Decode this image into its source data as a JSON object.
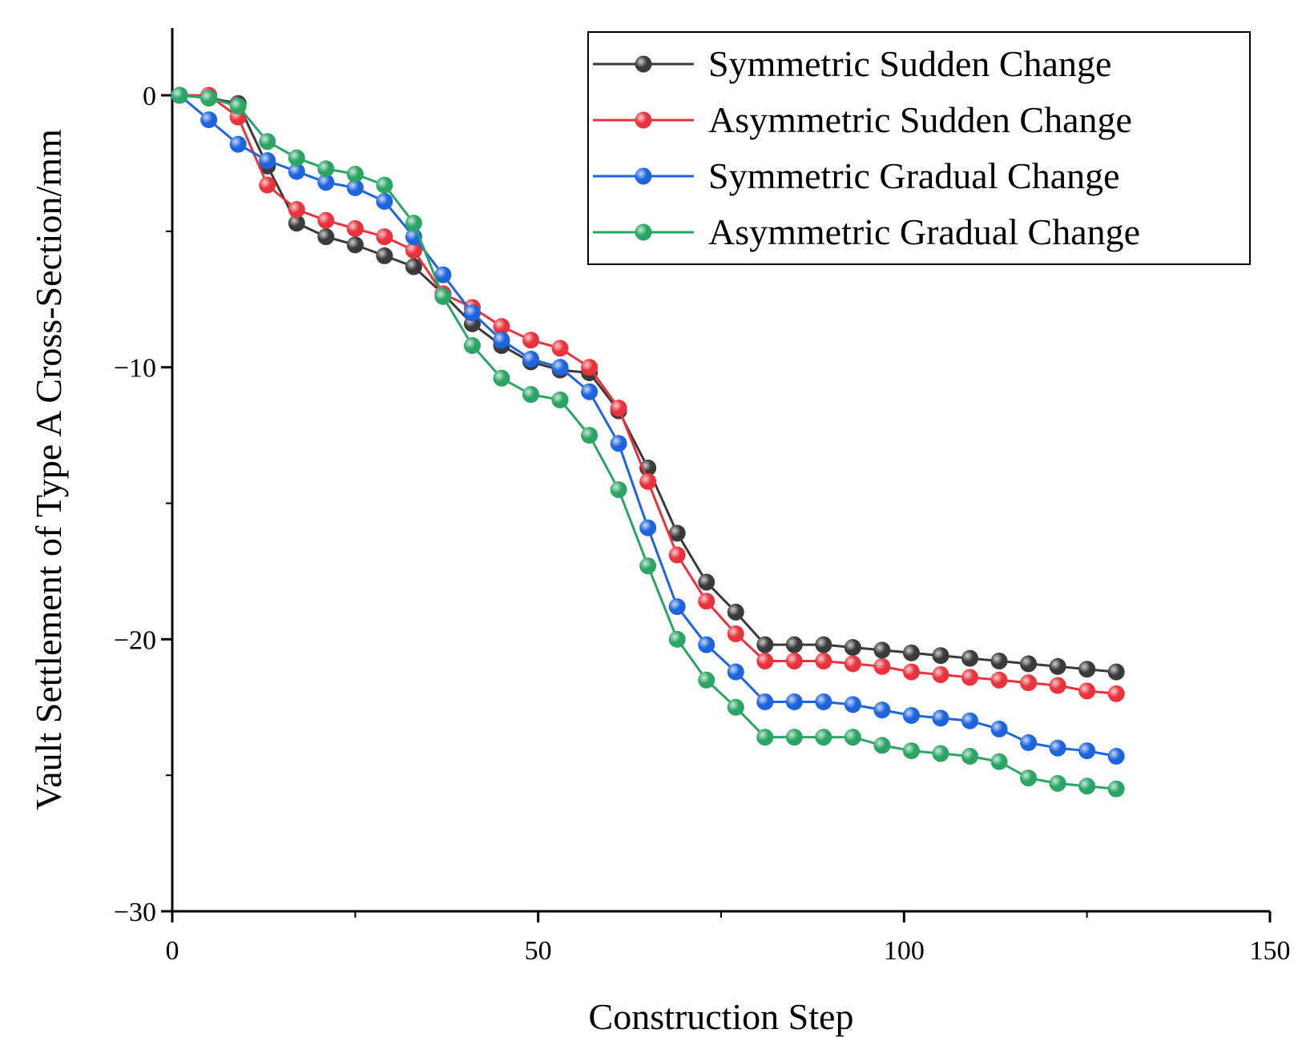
{
  "chart_data": {
    "type": "line",
    "title": "",
    "xlabel": "Construction Step",
    "ylabel": "Vault Settlement of Type A Cross-Section/mm",
    "xlim": [
      0,
      150
    ],
    "ylim": [
      -30,
      2.5
    ],
    "xticks": [
      0,
      50,
      100,
      150
    ],
    "xtick_labels": [
      "0",
      "50",
      "100",
      "150"
    ],
    "yticks": [
      0,
      -10,
      -20,
      -30
    ],
    "ytick_labels": [
      "0",
      "−10",
      "−20",
      "−30"
    ],
    "grid": false,
    "legend_position": "top-right",
    "x": [
      1,
      5,
      9,
      13,
      17,
      21,
      25,
      29,
      33,
      37,
      41,
      45,
      49,
      53,
      57,
      61,
      65,
      69,
      73,
      77,
      81,
      85,
      89,
      93,
      97,
      101,
      105,
      109,
      113,
      117,
      121,
      125,
      129
    ],
    "series": [
      {
        "name": "Symmetric Sudden Change",
        "color": "#3a3a3a",
        "values": [
          0,
          -0.1,
          -0.3,
          -2.6,
          -4.7,
          -5.2,
          -5.5,
          -5.9,
          -6.3,
          -7.3,
          -8.4,
          -9.2,
          -9.8,
          -10.1,
          -10.2,
          -11.6,
          -13.7,
          -16.1,
          -17.9,
          -19.0,
          -20.2,
          -20.2,
          -20.2,
          -20.3,
          -20.4,
          -20.5,
          -20.6,
          -20.7,
          -20.8,
          -20.9,
          -21.0,
          -21.1,
          -21.2
        ]
      },
      {
        "name": "Asymmetric Sudden Change",
        "color": "#e8323c",
        "values": [
          0,
          0,
          -0.8,
          -3.3,
          -4.2,
          -4.6,
          -4.9,
          -5.2,
          -5.7,
          -7.3,
          -7.8,
          -8.5,
          -9.0,
          -9.3,
          -10.0,
          -11.5,
          -14.2,
          -16.9,
          -18.6,
          -19.8,
          -20.8,
          -20.8,
          -20.8,
          -20.9,
          -21.0,
          -21.2,
          -21.3,
          -21.4,
          -21.5,
          -21.6,
          -21.7,
          -21.9,
          -22.0
        ]
      },
      {
        "name": "Symmetric Gradual Change",
        "color": "#1e64dc",
        "values": [
          0,
          -0.9,
          -1.8,
          -2.4,
          -2.8,
          -3.2,
          -3.4,
          -3.9,
          -5.2,
          -6.6,
          -8.0,
          -9.0,
          -9.7,
          -10.0,
          -10.9,
          -12.8,
          -15.9,
          -18.8,
          -20.2,
          -21.2,
          -22.3,
          -22.3,
          -22.3,
          -22.4,
          -22.6,
          -22.8,
          -22.9,
          -23.0,
          -23.3,
          -23.8,
          -24.0,
          -24.1,
          -24.3
        ]
      },
      {
        "name": "Asymmetric Gradual Change",
        "color": "#2aa564",
        "values": [
          0,
          -0.1,
          -0.4,
          -1.7,
          -2.3,
          -2.7,
          -2.9,
          -3.3,
          -4.7,
          -7.4,
          -9.2,
          -10.4,
          -11.0,
          -11.2,
          -12.5,
          -14.5,
          -17.3,
          -20.0,
          -21.5,
          -22.5,
          -23.6,
          -23.6,
          -23.6,
          -23.6,
          -23.9,
          -24.1,
          -24.2,
          -24.3,
          -24.5,
          -25.1,
          -25.3,
          -25.4,
          -25.5
        ]
      }
    ]
  }
}
